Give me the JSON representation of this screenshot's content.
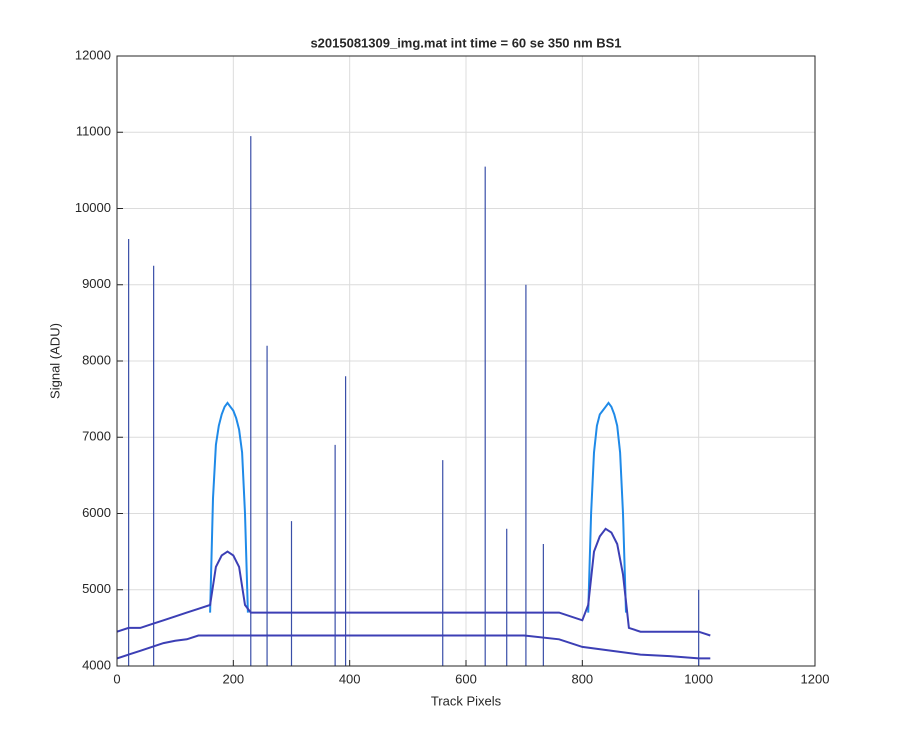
{
  "chart_data": {
    "type": "line",
    "title": "s2015081309_img.mat int time = 60 se  350 nm BS1",
    "x_label": "Track Pixels",
    "y_label": "Signal (ADU)",
    "xlim": [
      0,
      1200
    ],
    "xticks": [
      0,
      200,
      400,
      600,
      800,
      1000,
      1200
    ],
    "ylim": [
      4000,
      12000
    ],
    "yticks": [
      4000,
      5000,
      6000,
      7000,
      8000,
      9000,
      10000,
      11000,
      12000
    ],
    "grid": true,
    "series": [
      {
        "color": "#1f8ae8",
        "x": [
          160,
          165,
          170,
          175,
          180,
          185,
          190,
          195,
          200,
          205,
          210,
          215,
          220,
          225
        ],
        "values": [
          4700,
          6200,
          6900,
          7150,
          7300,
          7400,
          7450,
          7400,
          7350,
          7250,
          7100,
          6800,
          6000,
          4700
        ]
      },
      {
        "color": "#1f8ae8",
        "x": [
          810,
          815,
          820,
          825,
          830,
          835,
          840,
          845,
          850,
          855,
          860,
          865,
          870,
          875
        ],
        "values": [
          4700,
          6000,
          6800,
          7150,
          7300,
          7350,
          7400,
          7450,
          7400,
          7300,
          7150,
          6800,
          6000,
          4700
        ]
      },
      {
        "color": "#3c3fb5",
        "x": [
          0,
          20,
          40,
          60,
          80,
          100,
          120,
          140,
          160,
          170,
          180,
          190,
          200,
          210,
          220,
          230,
          260,
          300,
          400,
          500,
          600,
          700,
          760,
          800,
          810,
          820,
          830,
          840,
          850,
          860,
          870,
          880,
          900,
          950,
          1000,
          1020
        ],
        "values": [
          4450,
          4500,
          4500,
          4550,
          4600,
          4650,
          4700,
          4750,
          4800,
          5300,
          5450,
          5500,
          5450,
          5300,
          4800,
          4700,
          4700,
          4700,
          4700,
          4700,
          4700,
          4700,
          4700,
          4600,
          4800,
          5500,
          5700,
          5800,
          5750,
          5600,
          5200,
          4500,
          4450,
          4450,
          4450,
          4400
        ]
      },
      {
        "color": "#3c3fb5",
        "x": [
          0,
          20,
          40,
          60,
          80,
          100,
          120,
          140,
          200,
          300,
          400,
          500,
          600,
          700,
          760,
          800,
          850,
          900,
          950,
          1000,
          1020
        ],
        "values": [
          4100,
          4150,
          4200,
          4250,
          4300,
          4330,
          4350,
          4400,
          4400,
          4400,
          4400,
          4400,
          4400,
          4400,
          4350,
          4250,
          4200,
          4150,
          4130,
          4100,
          4100
        ]
      }
    ],
    "spikes": {
      "color": "#3a4fa8",
      "x": [
        20,
        63,
        230,
        258,
        300,
        375,
        393,
        560,
        633,
        670,
        703,
        733,
        1000
      ],
      "values": [
        9600,
        9250,
        10950,
        8200,
        5900,
        6900,
        7800,
        6700,
        10550,
        5800,
        9000,
        5600,
        5000
      ]
    }
  }
}
